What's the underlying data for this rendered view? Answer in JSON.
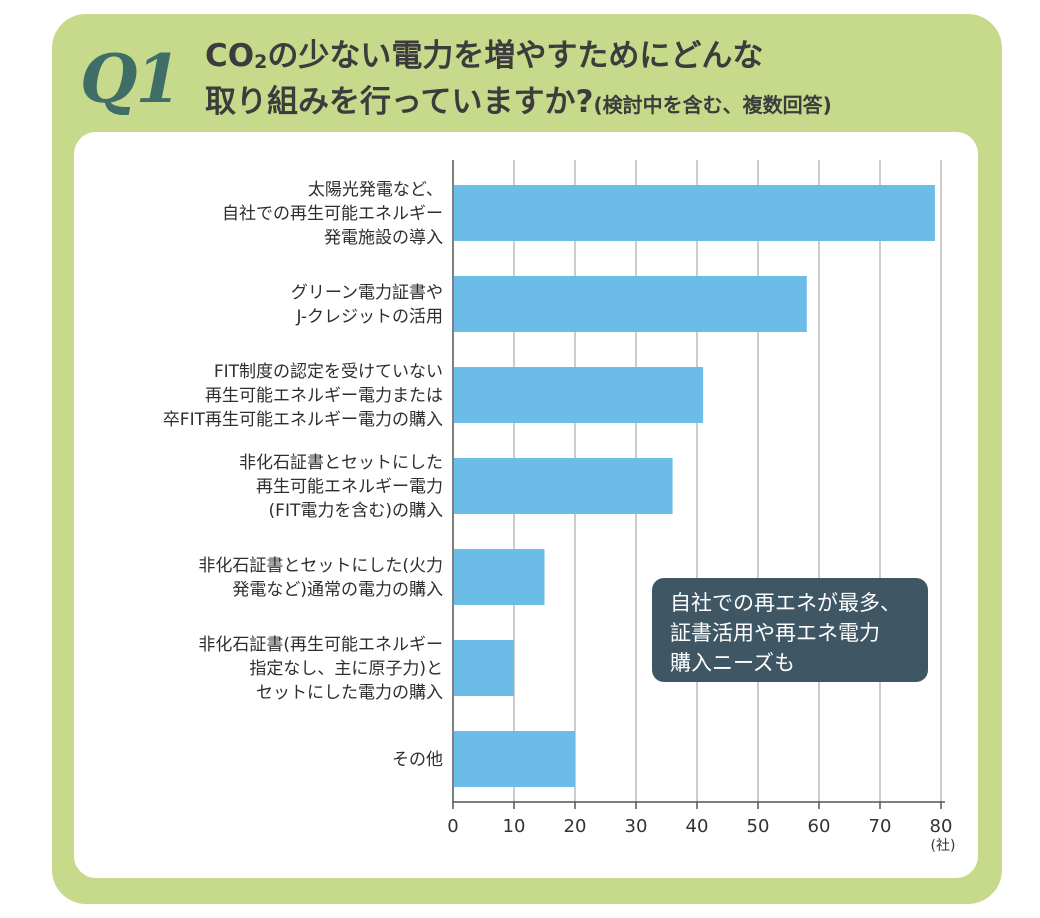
{
  "header": {
    "question_number": "Q1",
    "title_line1_a": "CO",
    "title_line1_sub": "2",
    "title_line1_b": "の少ない電力を増やすためにどんな",
    "title_line2": "取り組みを行っていますか?",
    "title_note": "(検討中を含む、複数回答)"
  },
  "callout": {
    "lines": [
      "自社での再エネが最多、",
      "証書活用や再エネ電力",
      "購入ニーズも"
    ]
  },
  "colors": {
    "frame": "#c7d98b",
    "bar": "#6bbde7",
    "callout": "#3f5764",
    "accent": "#3f6e68"
  },
  "chart_data": {
    "type": "bar",
    "orientation": "horizontal",
    "categories": [
      [
        "太陽光発電など、",
        "自社での再生可能エネルギー",
        "発電施設の導入"
      ],
      [
        "グリーン電力証書や",
        "J-クレジットの活用"
      ],
      [
        "FIT制度の認定を受けていない",
        "再生可能エネルギー電力または",
        "卒FIT再生可能エネルギー電力の購入"
      ],
      [
        "非化石証書とセットにした",
        "再生可能エネルギー電力",
        "(FIT電力を含む)の購入"
      ],
      [
        "非化石証書とセットにした(火力",
        "発電など)通常の電力の購入"
      ],
      [
        "非化石証書(再生可能エネルギー",
        "指定なし、主に原子力)と",
        "セットにした電力の購入"
      ],
      [
        "その他"
      ]
    ],
    "values": [
      79,
      58,
      41,
      36,
      15,
      10,
      20
    ],
    "xlim": [
      0,
      80
    ],
    "xticks": [
      0,
      10,
      20,
      30,
      40,
      50,
      60,
      70,
      80
    ],
    "x_unit": "(社)",
    "grid": "vertical",
    "title": "",
    "xlabel": "",
    "ylabel": ""
  }
}
